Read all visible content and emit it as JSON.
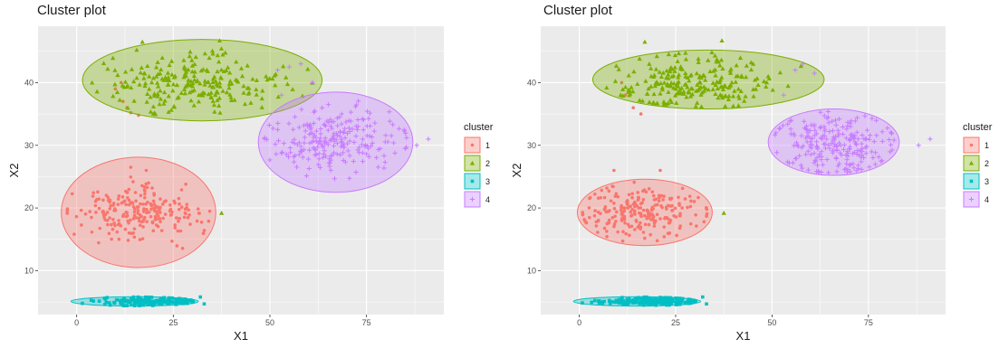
{
  "chart_data": [
    {
      "type": "scatter",
      "title": "Cluster plot",
      "xlabel": "X1",
      "ylabel": "X2",
      "xlim": [
        -10,
        95
      ],
      "ylim": [
        3,
        49
      ],
      "xticks": [
        0,
        25,
        50,
        75
      ],
      "yticks": [
        10,
        20,
        30,
        40
      ],
      "grid": true,
      "legend": {
        "title": "cluster",
        "position": "right",
        "entries": [
          "1",
          "2",
          "3",
          "4"
        ]
      },
      "colors": {
        "1": "#F8766D",
        "2": "#7CAE00",
        "3": "#00BFC4",
        "4": "#C77CFF",
        "panel": "#EBEBEB",
        "grid": "#FFFFFF"
      },
      "series": [
        {
          "name": "1",
          "marker": "circle",
          "center": [
            15,
            19
          ],
          "spread": [
            8,
            2
          ],
          "count": 230,
          "ellipse": {
            "cx": 16,
            "cy": 19.3,
            "rx": 20,
            "ry": 8.8
          },
          "extra_points": [
            [
              10,
              39
            ],
            [
              12,
              37
            ],
            [
              13,
              36
            ],
            [
              14,
              35.2
            ],
            [
              16,
              34.8
            ],
            [
              11.5,
              40
            ],
            [
              14,
              26.5
            ],
            [
              18,
              26
            ]
          ]
        },
        {
          "name": "2",
          "marker": "triangle",
          "center": [
            30,
            40
          ],
          "spread": [
            11,
            2.2
          ],
          "count": 230,
          "ellipse": {
            "cx": 32.5,
            "cy": 40.4,
            "rx": 31,
            "ry": 6.5
          },
          "extra_points": [
            [
              37.5,
              19.2
            ],
            [
              17,
              46.5
            ],
            [
              37,
              46.7
            ],
            [
              49,
              41
            ]
          ]
        },
        {
          "name": "3",
          "marker": "square",
          "center": [
            19,
            5.1
          ],
          "spread": [
            7,
            0.35
          ],
          "count": 180,
          "ellipse": {
            "cx": 15,
            "cy": 5.1,
            "rx": 16.5,
            "ry": 0.75
          },
          "extra_points": [
            [
              32,
              5.8
            ],
            [
              33,
              4.7
            ]
          ]
        },
        {
          "name": "4",
          "marker": "plus",
          "center": [
            66,
            30.5
          ],
          "spread": [
            8,
            2.6
          ],
          "count": 230,
          "ellipse": {
            "cx": 67,
            "cy": 30.5,
            "rx": 20,
            "ry": 8
          },
          "extra_points": [
            [
              52,
              42
            ],
            [
              55,
              42.5
            ],
            [
              58,
              43
            ],
            [
              61,
              40
            ],
            [
              88,
              30
            ],
            [
              91,
              31
            ],
            [
              85,
              29.5
            ],
            [
              53,
              38
            ],
            [
              52,
              32.5
            ]
          ]
        }
      ]
    },
    {
      "type": "scatter",
      "title": "Cluster plot",
      "xlabel": "X1",
      "ylabel": "X2",
      "xlim": [
        -10,
        95
      ],
      "ylim": [
        3,
        49
      ],
      "xticks": [
        0,
        25,
        50,
        75
      ],
      "yticks": [
        10,
        20,
        30,
        40
      ],
      "grid": true,
      "legend": {
        "title": "cluster",
        "position": "right",
        "entries": [
          "1",
          "2",
          "3",
          "4"
        ]
      },
      "colors": {
        "1": "#F8766D",
        "2": "#7CAE00",
        "3": "#00BFC4",
        "4": "#C77CFF",
        "panel": "#EBEBEB",
        "grid": "#FFFFFF"
      },
      "series": [
        {
          "name": "1",
          "marker": "circle",
          "center": [
            16,
            19.3
          ],
          "spread": [
            8,
            2
          ],
          "count": 230,
          "ellipse": {
            "cx": 17,
            "cy": 19.3,
            "rx": 17.5,
            "ry": 5.3
          },
          "extra_points": [
            [
              12,
              38
            ],
            [
              14,
              36
            ],
            [
              16,
              35
            ],
            [
              11,
              40
            ],
            [
              9,
              26
            ],
            [
              21,
              26
            ]
          ]
        },
        {
          "name": "2",
          "marker": "triangle",
          "center": [
            30,
            40
          ],
          "spread": [
            10,
            2
          ],
          "count": 230,
          "ellipse": {
            "cx": 33.5,
            "cy": 40.5,
            "rx": 30,
            "ry": 4.7
          },
          "extra_points": [
            [
              37.5,
              19.2
            ],
            [
              17,
              46.5
            ],
            [
              37,
              46.7
            ],
            [
              49,
              41
            ]
          ]
        },
        {
          "name": "3",
          "marker": "square",
          "center": [
            19,
            5.1
          ],
          "spread": [
            7,
            0.35
          ],
          "count": 180,
          "ellipse": {
            "cx": 15,
            "cy": 5.1,
            "rx": 16.5,
            "ry": 0.75
          },
          "extra_points": [
            [
              32,
              5.8
            ],
            [
              33,
              4.7
            ]
          ]
        },
        {
          "name": "4",
          "marker": "plus",
          "center": [
            66,
            30.5
          ],
          "spread": [
            8,
            2.6
          ],
          "count": 230,
          "ellipse": {
            "cx": 66,
            "cy": 30.5,
            "rx": 17,
            "ry": 5.3
          },
          "extra_points": [
            [
              56,
              42
            ],
            [
              58,
              43
            ],
            [
              61,
              41.5
            ],
            [
              88,
              30
            ],
            [
              91,
              31
            ],
            [
              53,
              38
            ],
            [
              51,
              32
            ]
          ]
        }
      ]
    }
  ]
}
